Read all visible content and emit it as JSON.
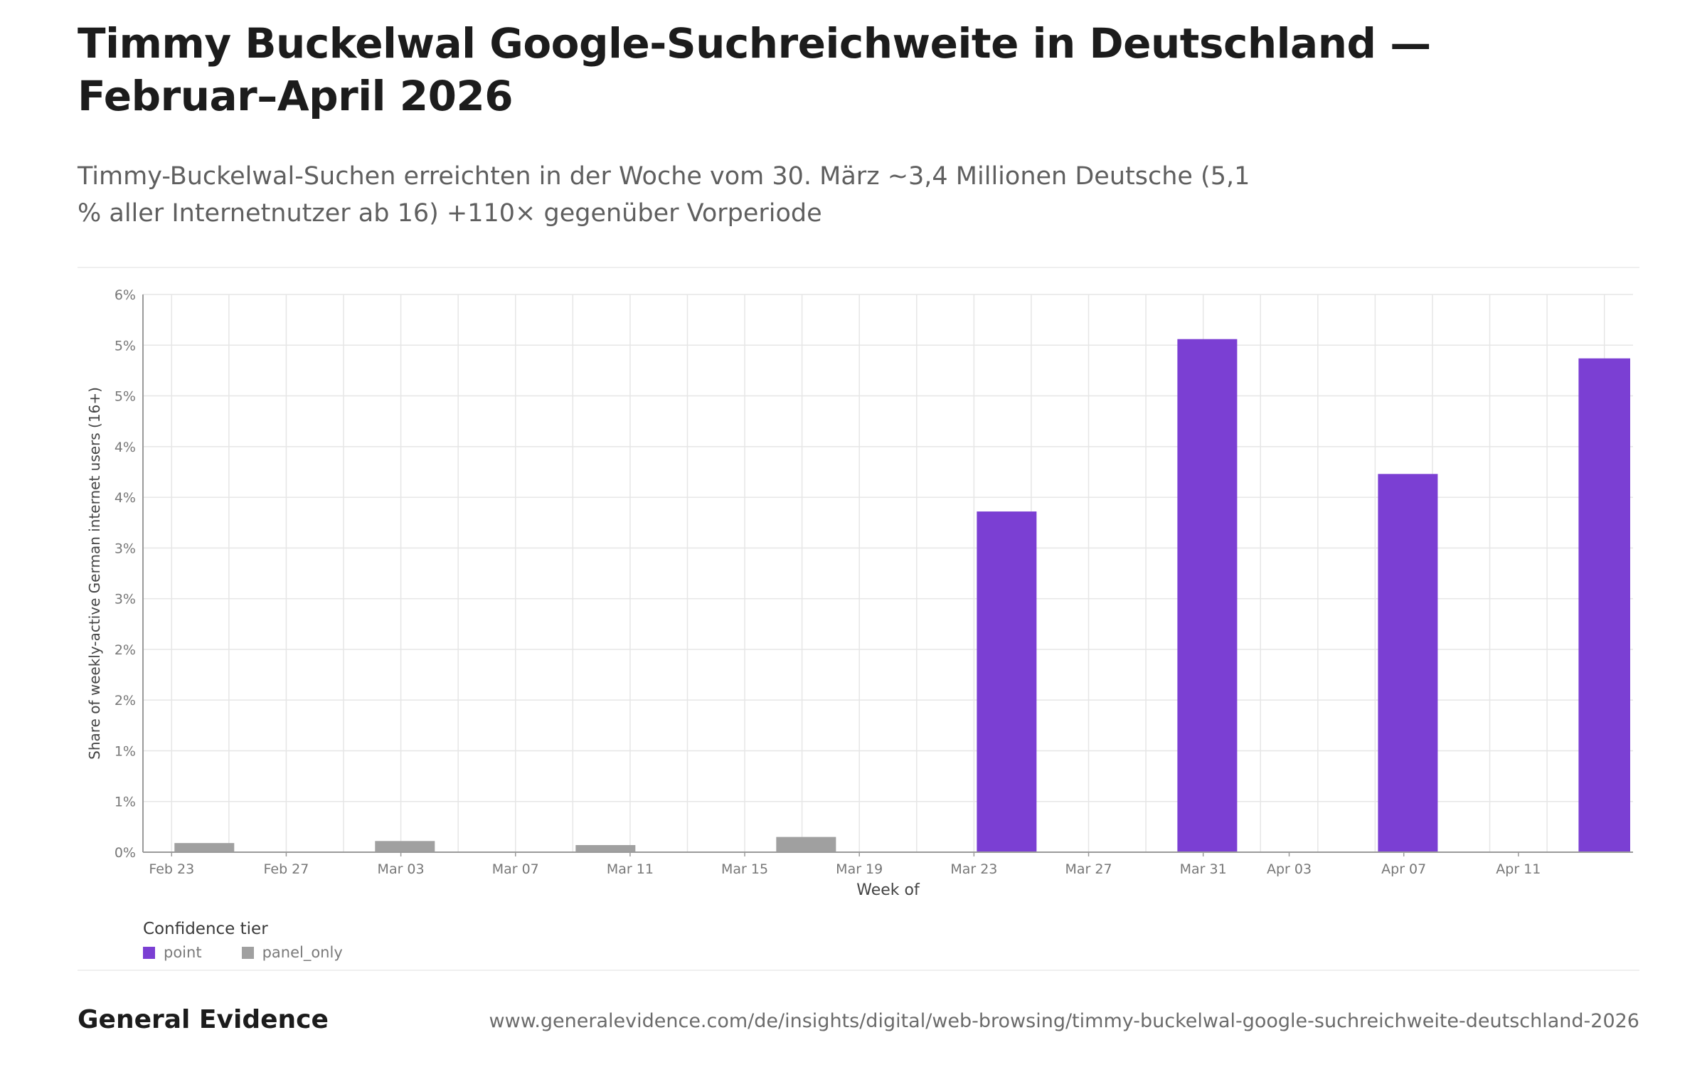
{
  "title": "Timmy Buckelwal Google-Suchreichweite in Deutschland — Februar–April 2026",
  "subtitle": "Timmy-Buckelwal-Suchen erreichten in der Woche vom 30. März ~3,4 Millionen Deutsche (5,1 % aller Internetnutzer ab 16) +110× gegenüber Vorperiode",
  "legend": {
    "title": "Confidence tier",
    "items": [
      {
        "label": "point",
        "color": "#7b3fd3"
      },
      {
        "label": "panel_only",
        "color": "#a0a0a0"
      }
    ]
  },
  "footer": {
    "brand": "General Evidence",
    "url": "www.generalevidence.com/de/insights/digital/web-browsing/timmy-buckelwal-google-suchreichweite-deutschland-2026"
  },
  "chart_data": {
    "type": "bar",
    "xlabel": "Week of",
    "ylabel": "Share of weekly-active German internet users (16+)",
    "ylim": [
      0,
      5.5
    ],
    "x_domain": [
      "2026-02-22",
      "2026-04-15"
    ],
    "y_ticks": [
      {
        "value": 0,
        "label": "0%"
      },
      {
        "value": 0.5,
        "label": "1%"
      },
      {
        "value": 1.0,
        "label": "1%"
      },
      {
        "value": 1.5,
        "label": "2%"
      },
      {
        "value": 2.0,
        "label": "2%"
      },
      {
        "value": 2.5,
        "label": "3%"
      },
      {
        "value": 3.0,
        "label": "3%"
      },
      {
        "value": 3.5,
        "label": "4%"
      },
      {
        "value": 4.0,
        "label": "4%"
      },
      {
        "value": 4.5,
        "label": "5%"
      },
      {
        "value": 5.0,
        "label": "5%"
      },
      {
        "value": 5.5,
        "label": "6%"
      }
    ],
    "x_ticks": [
      {
        "date": "2026-02-23",
        "label": "Feb 23"
      },
      {
        "date": "2026-02-27",
        "label": "Feb 27"
      },
      {
        "date": "2026-03-03",
        "label": "Mar 03"
      },
      {
        "date": "2026-03-07",
        "label": "Mar 07"
      },
      {
        "date": "2026-03-11",
        "label": "Mar 11"
      },
      {
        "date": "2026-03-15",
        "label": "Mar 15"
      },
      {
        "date": "2026-03-19",
        "label": "Mar 19"
      },
      {
        "date": "2026-03-23",
        "label": "Mar 23"
      },
      {
        "date": "2026-03-27",
        "label": "Mar 27"
      },
      {
        "date": "2026-03-31",
        "label": "Mar 31"
      },
      {
        "date": "2026-04-03",
        "label": "Apr 03"
      },
      {
        "date": "2026-04-07",
        "label": "Apr 07"
      },
      {
        "date": "2026-04-11",
        "label": "Apr 11"
      }
    ],
    "grid": true,
    "legend_position": "bottom-left",
    "bars": [
      {
        "week": "2026-02-23",
        "value": 0.09,
        "tier": "panel_only"
      },
      {
        "week": "2026-03-02",
        "value": 0.11,
        "tier": "panel_only"
      },
      {
        "week": "2026-03-09",
        "value": 0.07,
        "tier": "panel_only"
      },
      {
        "week": "2026-03-16",
        "value": 0.15,
        "tier": "panel_only"
      },
      {
        "week": "2026-03-23",
        "value": 3.36,
        "tier": "point"
      },
      {
        "week": "2026-03-30",
        "value": 5.06,
        "tier": "point"
      },
      {
        "week": "2026-04-06",
        "value": 3.73,
        "tier": "point"
      },
      {
        "week": "2026-04-13",
        "value": 4.87,
        "tier": "point"
      }
    ]
  }
}
